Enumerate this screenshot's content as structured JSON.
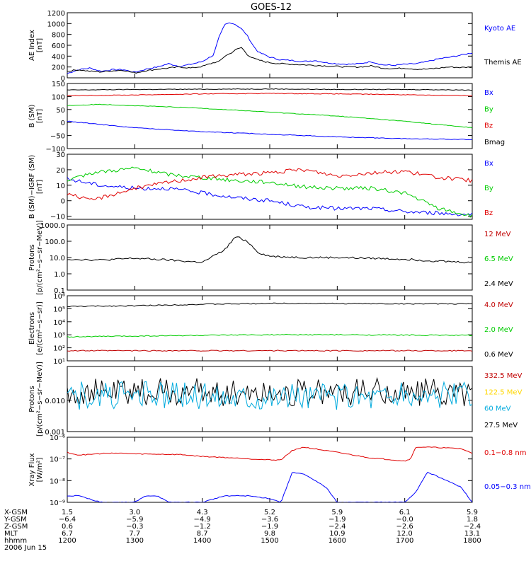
{
  "title": "GOES-12",
  "chart_data": [
    {
      "type": "line",
      "ylabel": [
        "AE Index",
        "[nT]"
      ],
      "ylim": [
        0,
        1200
      ],
      "yticks": [
        0,
        200,
        400,
        600,
        800,
        1000,
        1200
      ],
      "ytick_labels": [
        "0",
        "200",
        "400",
        "600",
        "800",
        "1000",
        "1200"
      ],
      "legend": [
        {
          "label": "Kyoto AE",
          "color": "#0000ff"
        },
        {
          "label": "Themis AE",
          "color": "#000000"
        }
      ],
      "series": [
        {
          "name": "Kyoto AE",
          "color": "#0000ff",
          "x": [
            1200,
            1210,
            1220,
            1230,
            1240,
            1250,
            1300,
            1310,
            1320,
            1330,
            1340,
            1350,
            1400,
            1410,
            1415,
            1420,
            1425,
            1430,
            1435,
            1440,
            1445,
            1450,
            1455,
            1500,
            1510,
            1520,
            1530,
            1540,
            1550,
            1600,
            1610,
            1620,
            1630,
            1640,
            1650,
            1700,
            1710,
            1720,
            1730,
            1740,
            1750,
            1800
          ],
          "y": [
            80,
            150,
            180,
            120,
            150,
            150,
            100,
            160,
            200,
            260,
            210,
            250,
            300,
            420,
            750,
            980,
            1020,
            980,
            900,
            780,
            600,
            470,
            430,
            380,
            330,
            320,
            300,
            320,
            280,
            260,
            250,
            260,
            300,
            240,
            230,
            250,
            260,
            300,
            350,
            380,
            420,
            460
          ]
        },
        {
          "name": "Themis AE",
          "color": "#000000",
          "x": [
            1200,
            1210,
            1220,
            1230,
            1240,
            1250,
            1300,
            1310,
            1320,
            1330,
            1340,
            1350,
            1400,
            1410,
            1415,
            1420,
            1425,
            1430,
            1435,
            1440,
            1445,
            1450,
            1455,
            1500,
            1510,
            1520,
            1530,
            1540,
            1550,
            1600,
            1610,
            1620,
            1630,
            1640,
            1650,
            1700,
            1710,
            1720,
            1730,
            1740,
            1750,
            1800
          ],
          "y": [
            120,
            150,
            120,
            110,
            130,
            140,
            90,
            130,
            160,
            180,
            200,
            180,
            210,
            280,
            300,
            400,
            450,
            520,
            560,
            430,
            360,
            330,
            300,
            280,
            260,
            250,
            240,
            230,
            220,
            210,
            200,
            200,
            220,
            180,
            170,
            180,
            160,
            160,
            180,
            200,
            190,
            200
          ]
        }
      ]
    },
    {
      "type": "line",
      "ylabel": [
        "B (SM)",
        "[nT]"
      ],
      "ylim": [
        -100,
        150
      ],
      "yticks": [
        -100,
        -50,
        0,
        50,
        100,
        150
      ],
      "ytick_labels": [
        "−100",
        "−50",
        "0",
        "50",
        "100",
        "150"
      ],
      "legend": [
        {
          "label": "Bx",
          "color": "#0000ff"
        },
        {
          "label": "By",
          "color": "#00cc00"
        },
        {
          "label": "Bz",
          "color": "#e00000"
        },
        {
          "label": "Bmag",
          "color": "#000000"
        }
      ],
      "series": [
        {
          "name": "Bmag",
          "color": "#000000",
          "x": [
            1200,
            1300,
            1400,
            1500,
            1600,
            1700,
            1800
          ],
          "y": [
            125,
            127,
            128,
            129,
            127,
            127,
            125
          ]
        },
        {
          "name": "Bz",
          "color": "#e00000",
          "x": [
            1200,
            1300,
            1400,
            1500,
            1600,
            1700,
            1800
          ],
          "y": [
            103,
            106,
            110,
            112,
            110,
            107,
            103
          ]
        },
        {
          "name": "By",
          "color": "#00cc00",
          "x": [
            1200,
            1230,
            1300,
            1400,
            1500,
            1600,
            1700,
            1800
          ],
          "y": [
            65,
            70,
            65,
            55,
            40,
            25,
            5,
            -20
          ]
        },
        {
          "name": "Bx",
          "color": "#0000ff",
          "x": [
            1200,
            1300,
            1400,
            1500,
            1600,
            1700,
            1800
          ],
          "y": [
            5,
            -20,
            -35,
            -45,
            -55,
            -62,
            -65
          ]
        }
      ]
    },
    {
      "type": "line",
      "ylabel": [
        "B (SM)−IGRF (SM)",
        "[nT]"
      ],
      "ylim": [
        -12,
        30
      ],
      "yticks": [
        -10,
        0,
        10,
        20,
        30
      ],
      "ytick_labels": [
        "−10",
        "0",
        "10",
        "20",
        "30"
      ],
      "legend": [
        {
          "label": "Bx",
          "color": "#0000ff"
        },
        {
          "label": "By",
          "color": "#00cc00"
        },
        {
          "label": "Bz",
          "color": "#e00000"
        }
      ],
      "series": [
        {
          "name": "Bx",
          "color": "#0000ff",
          "x": [
            1200,
            1230,
            1300,
            1330,
            1400,
            1430,
            1500,
            1530,
            1600,
            1630,
            1700,
            1730,
            1800
          ],
          "y": [
            14,
            10,
            8,
            8,
            5,
            2,
            0,
            -4,
            -5,
            -5,
            -7,
            -8,
            -9
          ]
        },
        {
          "name": "By",
          "color": "#00cc00",
          "x": [
            1200,
            1220,
            1300,
            1330,
            1400,
            1430,
            1500,
            1530,
            1600,
            1630,
            1700,
            1730,
            1800
          ],
          "y": [
            12,
            18,
            21,
            17,
            15,
            13,
            12,
            9,
            8,
            8,
            5,
            -5,
            -10
          ]
        },
        {
          "name": "Bz",
          "color": "#e00000",
          "x": [
            1200,
            1220,
            1300,
            1330,
            1400,
            1430,
            1500,
            1530,
            1600,
            1630,
            1700,
            1730,
            1800
          ],
          "y": [
            5,
            0,
            8,
            12,
            15,
            17,
            18,
            20,
            16,
            18,
            19,
            15,
            13
          ]
        }
      ]
    },
    {
      "type": "line",
      "ylabel": [
        "Protons",
        "[p/(cm²−s−sr−MeV)]"
      ],
      "log": true,
      "ylim": [
        0.1,
        1000
      ],
      "yticks": [
        0.1,
        1,
        10,
        100,
        1000
      ],
      "ytick_labels": [
        "0.1",
        "1.0",
        "10.0",
        "100.0",
        "1000.0"
      ],
      "legend": [
        {
          "label": "12 MeV",
          "color": "#c00000"
        },
        {
          "label": "6.5 MeV",
          "color": "#00cc00"
        },
        {
          "label": "2.4 MeV",
          "color": "#000000"
        }
      ],
      "series": [
        {
          "name": "2.4 MeV",
          "color": "#000000",
          "x": [
            1200,
            1230,
            1300,
            1330,
            1400,
            1420,
            1430,
            1440,
            1450,
            1500,
            1530,
            1600,
            1630,
            1700,
            1730,
            1800
          ],
          "y": [
            8,
            7,
            9,
            7,
            5,
            30,
            200,
            100,
            20,
            12,
            10,
            10,
            9,
            8,
            6,
            5
          ]
        }
      ]
    },
    {
      "type": "line",
      "ylabel": [
        "Electrons",
        "[e/(cm²−s−sr)]"
      ],
      "log": true,
      "ylim": [
        10,
        1000000
      ],
      "yticks": [
        10,
        100,
        1000,
        10000,
        100000,
        1000000
      ],
      "ytick_labels": [
        "10¹",
        "10²",
        "10³",
        "10⁴",
        "10⁵",
        "10⁶"
      ],
      "legend": [
        {
          "label": "4.0 MeV",
          "color": "#c00000"
        },
        {
          "label": "2.0 MeV",
          "color": "#00cc00"
        },
        {
          "label": "0.6 MeV",
          "color": "#000000"
        }
      ],
      "series": [
        {
          "name": "0.6 MeV",
          "color": "#000000",
          "x": [
            1200,
            1300,
            1400,
            1500,
            1600,
            1700,
            1800
          ],
          "y": [
            150000,
            170000,
            220000,
            260000,
            250000,
            240000,
            240000
          ]
        },
        {
          "name": "2.0 MeV",
          "color": "#00cc00",
          "x": [
            1200,
            1300,
            1400,
            1500,
            1600,
            1700,
            1800
          ],
          "y": [
            700,
            800,
            900,
            1000,
            1000,
            950,
            900
          ]
        },
        {
          "name": "4.0 MeV",
          "color": "#c00000",
          "x": [
            1200,
            1300,
            1400,
            1500,
            1600,
            1700,
            1800
          ],
          "y": [
            60,
            60,
            60,
            60,
            60,
            60,
            60
          ]
        }
      ]
    },
    {
      "type": "line",
      "ylabel": [
        "Protons",
        "[p/(cm²−s−sr−MeV)]"
      ],
      "log": true,
      "ylim": [
        0.001,
        0.12
      ],
      "yticks": [
        0.001,
        0.01
      ],
      "ytick_labels": [
        "0.001",
        "0.010"
      ],
      "legend": [
        {
          "label": "332.5 MeV",
          "color": "#c00000"
        },
        {
          "label": "122.5 MeV",
          "color": "#ffd700"
        },
        {
          "label": "60 MeV",
          "color": "#00aadd"
        },
        {
          "label": "27.5 MeV",
          "color": "#000000"
        }
      ],
      "series": [
        {
          "name": "27.5 MeV",
          "color": "#000000",
          "x": [
            1200,
            1300,
            1400,
            1500,
            1600,
            1700,
            1800
          ],
          "y": [
            0.018,
            0.018,
            0.018,
            0.018,
            0.018,
            0.018,
            0.018
          ]
        },
        {
          "name": "60 MeV",
          "color": "#00aadd",
          "x": [
            1200,
            1300,
            1400,
            1500,
            1600,
            1700,
            1800
          ],
          "y": [
            0.014,
            0.014,
            0.014,
            0.014,
            0.014,
            0.014,
            0.014
          ]
        }
      ]
    },
    {
      "type": "line",
      "ylabel": [
        "Xray Flux",
        "[W/m²]"
      ],
      "log": true,
      "ylim": [
        1e-09,
        1e-06
      ],
      "yticks": [
        1e-09,
        1e-08,
        1e-07,
        1e-06
      ],
      "ytick_labels": [
        "10⁻⁹",
        "10⁻⁸",
        "10⁻⁷",
        "10⁻⁶"
      ],
      "legend": [
        {
          "label": "0.1−0.8 nm",
          "color": "#e00000"
        },
        {
          "label": "0.05−0.3 nm",
          "color": "#0000ff"
        }
      ],
      "series": [
        {
          "name": "0.1−0.8 nm",
          "color": "#e00000",
          "x": [
            1200,
            1210,
            1240,
            1300,
            1340,
            1400,
            1430,
            1500,
            1510,
            1520,
            1530,
            1600,
            1630,
            1650,
            1700,
            1705,
            1710,
            1720,
            1750,
            1800
          ],
          "y": [
            2e-07,
            1.5e-07,
            1.9e-07,
            1.7e-07,
            1.6e-07,
            1.3e-07,
            1.1e-07,
            9e-08,
            9e-08,
            2.5e-07,
            3.5e-07,
            2e-07,
            1.1e-07,
            9e-08,
            8e-08,
            1e-07,
            3.5e-07,
            3.5e-07,
            3e-07,
            1.8e-07
          ]
        },
        {
          "name": "0.05−0.3 nm",
          "color": "#0000ff",
          "x": [
            1200,
            1210,
            1230,
            1300,
            1310,
            1320,
            1330,
            1400,
            1420,
            1440,
            1500,
            1510,
            1520,
            1530,
            1550,
            1600,
            1630,
            1650,
            1700,
            1710,
            1720,
            1730,
            1750,
            1800
          ],
          "y": [
            2e-09,
            2e-09,
            1e-09,
            1e-09,
            2e-09,
            2e-09,
            1e-09,
            1e-09,
            2e-09,
            2e-09,
            1.5e-09,
            1e-09,
            2.5e-08,
            2e-08,
            5e-09,
            1e-09,
            1e-09,
            1e-09,
            1e-09,
            3e-09,
            2.5e-08,
            1.5e-08,
            5e-09,
            1e-09
          ]
        }
      ]
    }
  ],
  "x_axis": {
    "hhmm": [
      "1200",
      "1300",
      "1400",
      "1500",
      "1600",
      "1700",
      "1800"
    ],
    "rows": [
      {
        "label": "X-GSM",
        "values": [
          "1.5",
          "3.0",
          "4.3",
          "5.2",
          "5.9",
          "6.1",
          "5.9"
        ]
      },
      {
        "label": "Y-GSM",
        "values": [
          "−6.4",
          "−5.9",
          "−4.9",
          "−3.6",
          "−1.9",
          "−0.0",
          "1.8"
        ]
      },
      {
        "label": "Z-GSM",
        "values": [
          "0.6",
          "−0.3",
          "−1.2",
          "−1.9",
          "−2.4",
          "−2.6",
          "−2.4"
        ]
      },
      {
        "label": "MLT",
        "values": [
          "6.7",
          "7.7",
          "8.7",
          "9.8",
          "10.9",
          "12.0",
          "13.1"
        ]
      },
      {
        "label": "hhmm",
        "values": [
          "1200",
          "1300",
          "1400",
          "1500",
          "1600",
          "1700",
          "1800"
        ]
      }
    ],
    "date": "2006 Jun 15"
  }
}
